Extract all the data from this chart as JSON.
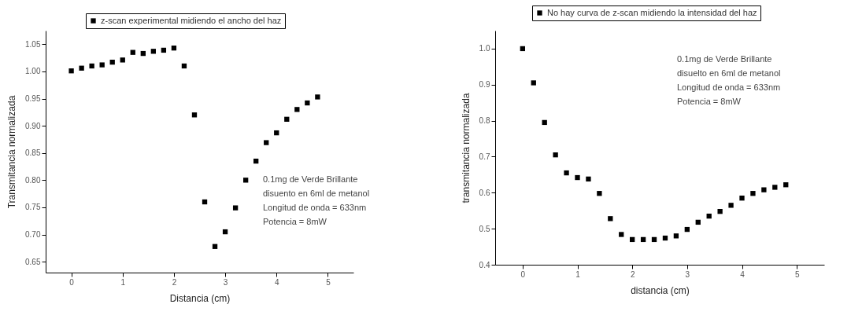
{
  "chart_data": [
    {
      "type": "scatter",
      "xlabel": "Distancia (cm)",
      "ylabel": "Transmitancia normalizada",
      "legend": "top",
      "x": [
        0,
        0.2,
        0.4,
        0.6,
        0.8,
        1.0,
        1.2,
        1.4,
        1.6,
        1.8,
        2.0,
        2.2,
        2.4,
        2.6,
        2.8,
        3.0,
        3.2,
        3.4,
        3.6,
        3.8,
        4.0,
        4.2,
        4.4,
        4.6,
        4.8
      ],
      "series": [
        {
          "name": "z-scan experimental midiendo el ancho del haz",
          "color": "#000000",
          "values": [
            1.001,
            1.006,
            1.01,
            1.012,
            1.017,
            1.021,
            1.035,
            1.033,
            1.037,
            1.039,
            1.043,
            1.01,
            0.92,
            0.76,
            0.678,
            0.705,
            0.749,
            0.8,
            0.835,
            0.869,
            0.887,
            0.912,
            0.93,
            0.942,
            0.953
          ]
        }
      ],
      "marker": "square",
      "grid": false,
      "xlim": [
        -0.5,
        5.5
      ],
      "xticks": [
        0,
        1,
        2,
        3,
        4,
        5
      ],
      "ylim": [
        0.63,
        1.075
      ],
      "yticks": [
        {
          "value": 0.65,
          "label": "0.65"
        },
        {
          "value": 0.7,
          "label": "0.70"
        },
        {
          "value": 0.75,
          "label": "0.75"
        },
        {
          "value": 0.8,
          "label": "0.80"
        },
        {
          "value": 0.85,
          "label": "0.85"
        },
        {
          "value": 0.9,
          "label": "0.90"
        },
        {
          "value": 0.95,
          "label": "0.95"
        },
        {
          "value": 1.0,
          "label": "1.00"
        },
        {
          "value": 1.05,
          "label": "1.05"
        }
      ],
      "annotations": [
        "0.1mg de Verde Brillante",
        "disuento en 6ml de metanol",
        "Longitud de onda = 633nm",
        "Potencia = 8mW"
      ]
    },
    {
      "type": "scatter",
      "xlabel": "distancia (cm)",
      "ylabel": "transmitancia normalizada",
      "legend": "top",
      "x": [
        0,
        0.2,
        0.4,
        0.6,
        0.8,
        1.0,
        1.2,
        1.4,
        1.6,
        1.8,
        2.0,
        2.2,
        2.4,
        2.6,
        2.8,
        3.0,
        3.2,
        3.4,
        3.6,
        3.8,
        4.0,
        4.2,
        4.4,
        4.6,
        4.8
      ],
      "series": [
        {
          "name": "No hay curva de z-scan midiendo la intensidad del haz",
          "color": "#000000",
          "values": [
            1.0,
            0.905,
            0.795,
            0.705,
            0.655,
            0.642,
            0.638,
            0.598,
            0.528,
            0.484,
            0.47,
            0.47,
            0.47,
            0.474,
            0.48,
            0.498,
            0.518,
            0.535,
            0.548,
            0.565,
            0.585,
            0.598,
            0.608,
            0.615,
            0.622
          ]
        }
      ],
      "marker": "square",
      "grid": false,
      "xlim": [
        -0.5,
        5.5
      ],
      "xticks": [
        0,
        1,
        2,
        3,
        4,
        5
      ],
      "ylim": [
        0.4,
        1.05
      ],
      "yticks": [
        {
          "value": 0.4,
          "label": "0.4"
        },
        {
          "value": 0.5,
          "label": "0.5"
        },
        {
          "value": 0.6,
          "label": "0.6"
        },
        {
          "value": 0.7,
          "label": "0.7"
        },
        {
          "value": 0.8,
          "label": "0.8"
        },
        {
          "value": 0.9,
          "label": "0.9"
        },
        {
          "value": 1.0,
          "label": "1.0"
        }
      ],
      "annotations": [
        "0.1mg de Verde Brillante",
        "disuelto en 6ml de metanol",
        "Longitud de onda = 633nm",
        "Potencia = 8mW"
      ]
    }
  ]
}
